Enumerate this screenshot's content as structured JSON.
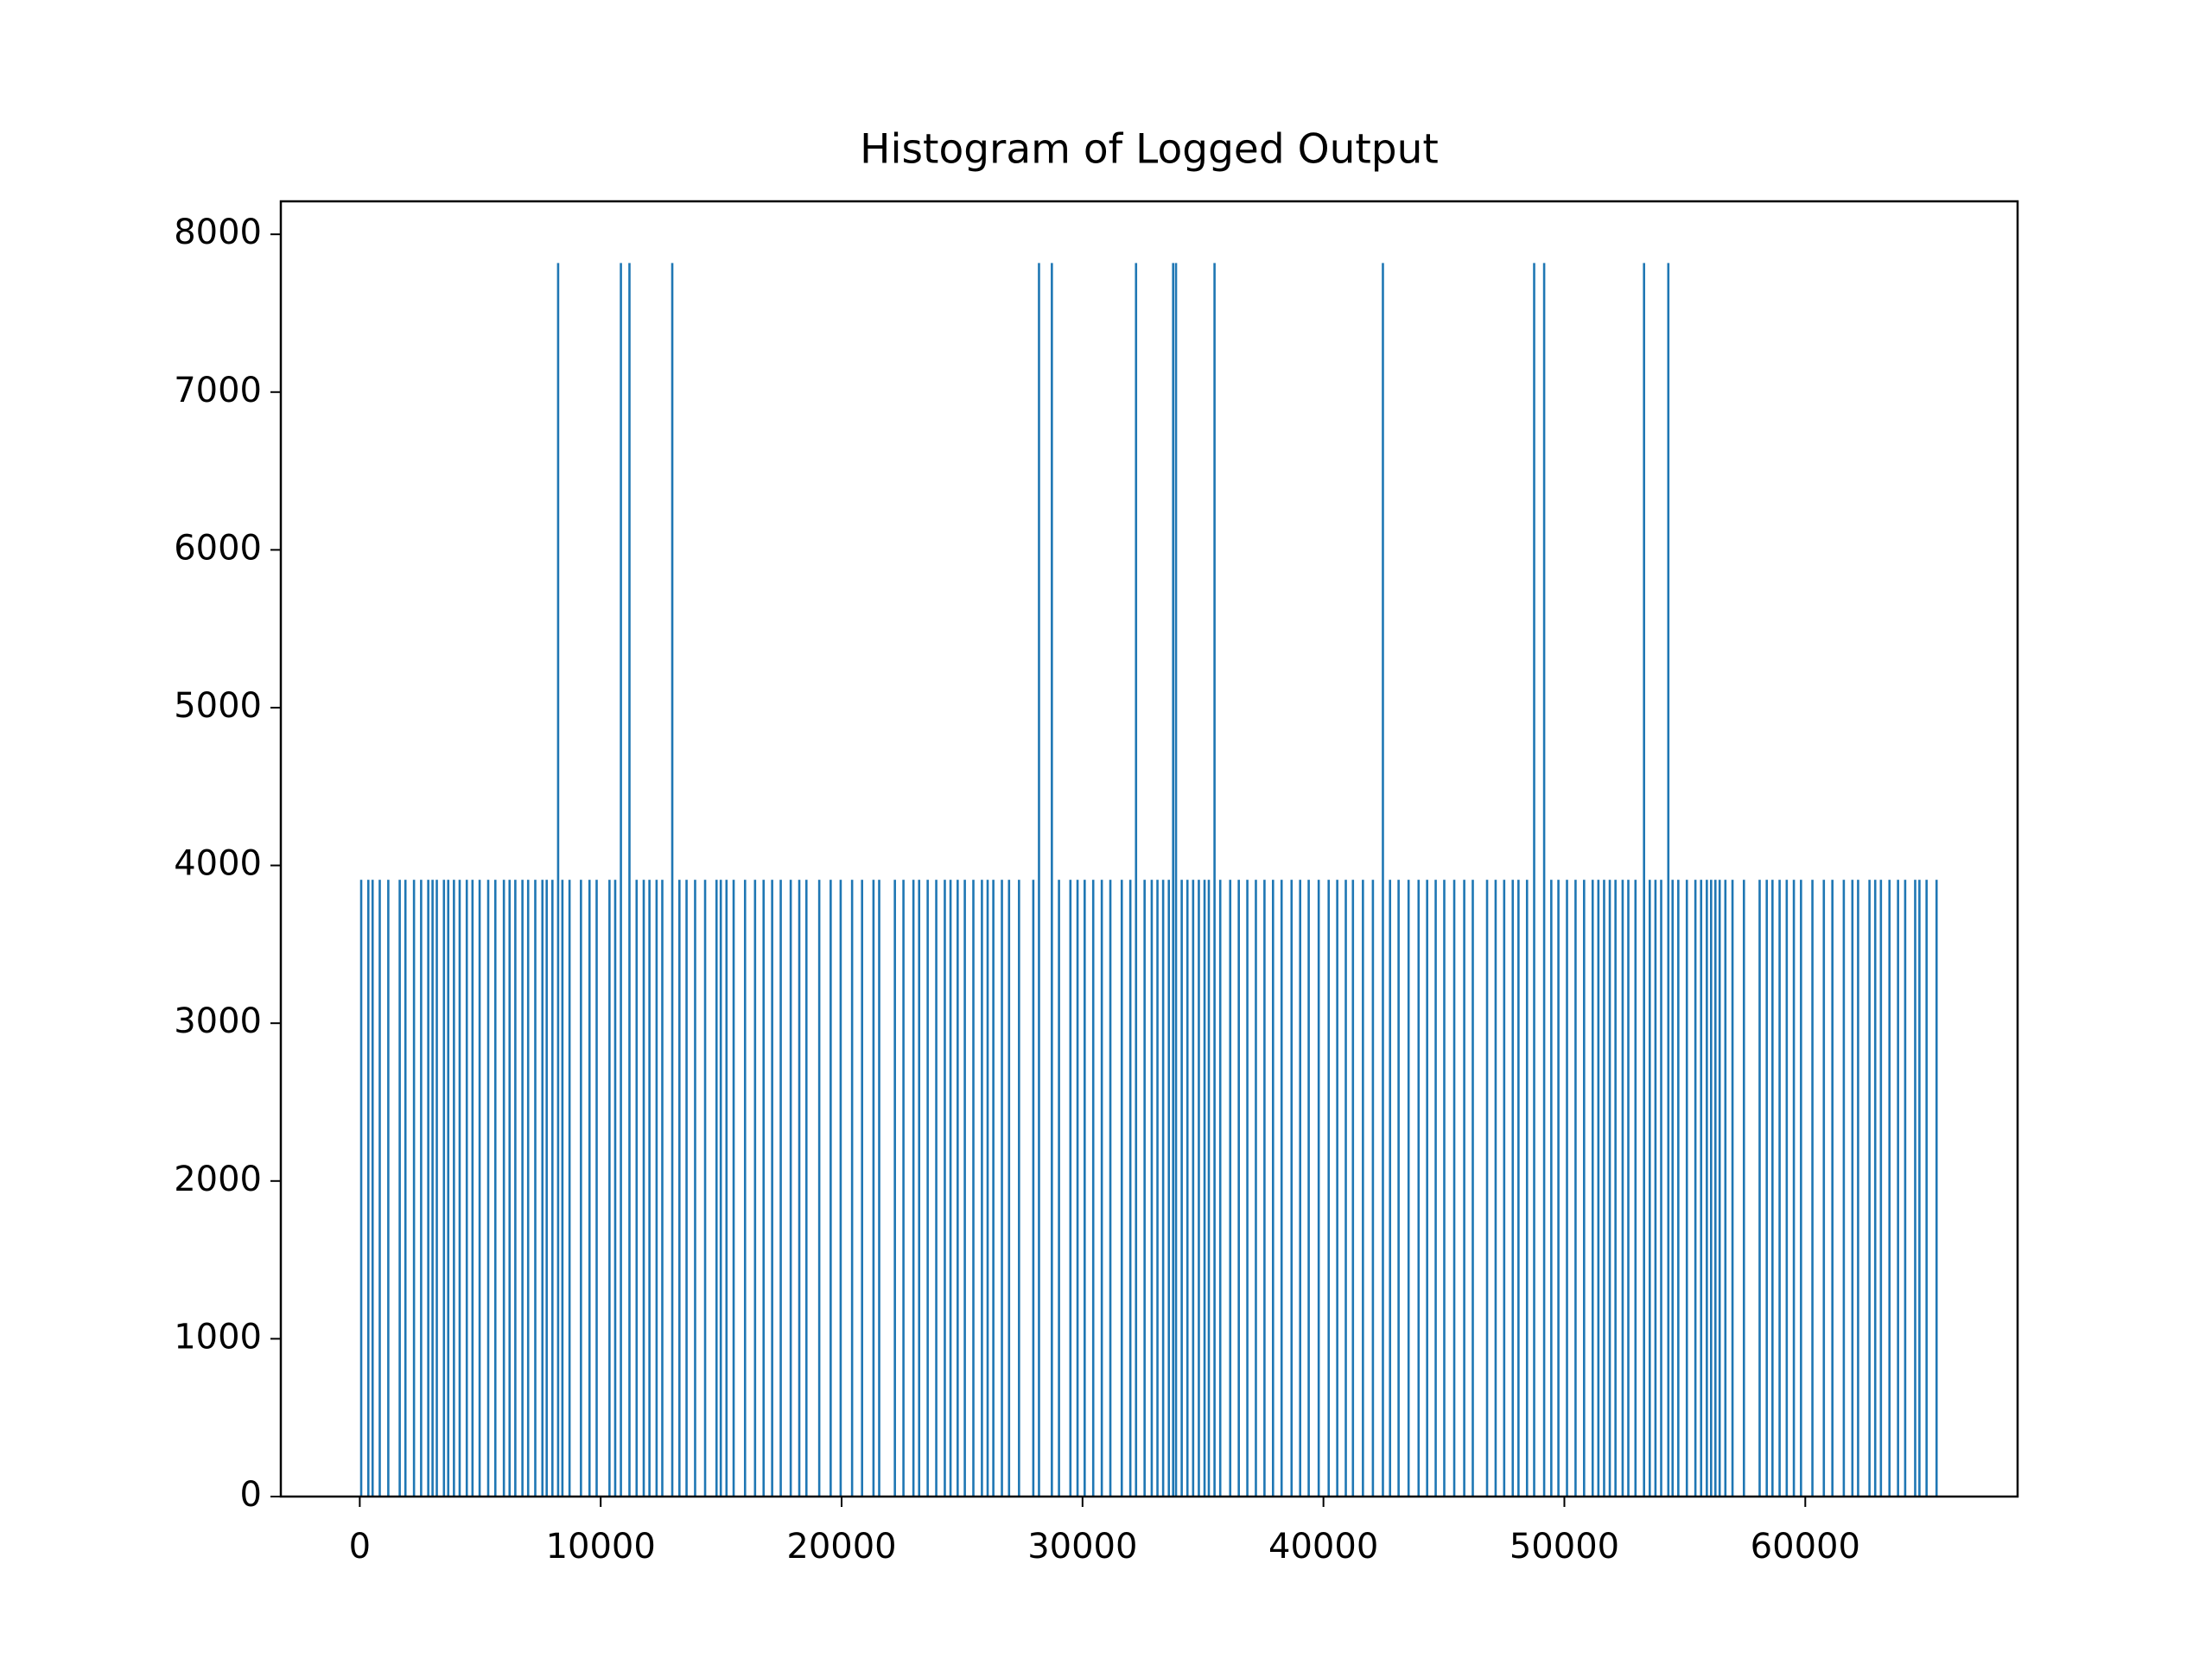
{
  "chart_data": {
    "type": "spike",
    "title": "Histogram of Logged Output",
    "color": "#1f77b4",
    "x": [
      59,
      355,
      533,
      829,
      1184,
      1658,
      1895,
      2251,
      2547,
      2843,
      3021,
      3198,
      3494,
      3672,
      3909,
      4146,
      4442,
      4679,
      4975,
      5331,
      5627,
      5982,
      6219,
      6456,
      6752,
      6989,
      7285,
      7581,
      7759,
      7996,
      8233,
      8411,
      8707,
      9181,
      9536,
      9832,
      10365,
      10602,
      10839,
      11194,
      11491,
      11787,
      12024,
      12320,
      12557,
      12971,
      13268,
      13564,
      13919,
      14334,
      14808,
      14985,
      15222,
      15518,
      15992,
      16407,
      16762,
      17117,
      17473,
      17888,
      18243,
      18539,
      19072,
      19546,
      19961,
      20435,
      20849,
      21323,
      21560,
      22211,
      22567,
      22981,
      23218,
      23573,
      23929,
      24284,
      24521,
      24817,
      25114,
      25469,
      25824,
      26061,
      26298,
      26654,
      26950,
      27364,
      27957,
      28193,
      28727,
      29023,
      29497,
      29793,
      30089,
      30444,
      30800,
      31155,
      31629,
      31984,
      32221,
      32576,
      32873,
      33110,
      33346,
      33583,
      33761,
      33880,
      34117,
      34354,
      34591,
      34828,
      35065,
      35242,
      35479,
      35716,
      36130,
      36486,
      36841,
      37196,
      37552,
      37907,
      38263,
      38677,
      39033,
      39388,
      39803,
      40217,
      40573,
      40928,
      41224,
      41639,
      42053,
      42468,
      42764,
      43119,
      43534,
      43949,
      44304,
      44659,
      45015,
      45429,
      45844,
      46199,
      46792,
      47147,
      47502,
      47858,
      48095,
      48450,
      48746,
      49161,
      49457,
      49753,
      50109,
      50464,
      50819,
      51175,
      51412,
      51649,
      51885,
      52122,
      52419,
      52655,
      52952,
      53307,
      53544,
      53781,
      54018,
      54315,
      54492,
      54729,
      55084,
      55439,
      55676,
      55913,
      56091,
      56269,
      56446,
      56683,
      56979,
      57453,
      58105,
      58401,
      58638,
      58934,
      59230,
      59526,
      59822,
      60296,
      60770,
      61125,
      61599,
      61955,
      62192,
      62665,
      62902,
      63139,
      63494,
      63850,
      64146,
      64561,
      64738,
      65034,
      65449
    ],
    "values": [
      3909,
      3909,
      3909,
      3909,
      3909,
      3909,
      3909,
      3909,
      3909,
      3909,
      3909,
      3909,
      3909,
      3909,
      3909,
      3909,
      3909,
      3909,
      3909,
      3909,
      3909,
      3909,
      3909,
      3909,
      3909,
      3909,
      3909,
      3909,
      3909,
      3909,
      7818,
      3909,
      3909,
      3909,
      3909,
      3909,
      3909,
      3909,
      7818,
      7818,
      3909,
      3909,
      3909,
      3909,
      3909,
      7818,
      3909,
      3909,
      3909,
      3909,
      3909,
      3909,
      3909,
      3909,
      3909,
      3909,
      3909,
      3909,
      3909,
      3909,
      3909,
      3909,
      3909,
      3909,
      3909,
      3909,
      3909,
      3909,
      3909,
      3909,
      3909,
      3909,
      3909,
      3909,
      3909,
      3909,
      3909,
      3909,
      3909,
      3909,
      3909,
      3909,
      3909,
      3909,
      3909,
      3909,
      3909,
      7818,
      7818,
      3909,
      3909,
      3909,
      3909,
      3909,
      3909,
      3909,
      3909,
      3909,
      7818,
      3909,
      3909,
      3909,
      3909,
      3909,
      7818,
      7818,
      3909,
      3909,
      3909,
      3909,
      3909,
      3909,
      7818,
      3909,
      3909,
      3909,
      3909,
      3909,
      3909,
      3909,
      3909,
      3909,
      3909,
      3909,
      3909,
      3909,
      3909,
      3909,
      3909,
      3909,
      3909,
      7818,
      3909,
      3909,
      3909,
      3909,
      3909,
      3909,
      3909,
      3909,
      3909,
      3909,
      3909,
      3909,
      3909,
      3909,
      3909,
      3909,
      7818,
      7818,
      3909,
      3909,
      3909,
      3909,
      3909,
      3909,
      3909,
      3909,
      3909,
      3909,
      3909,
      3909,
      3909,
      7818,
      3909,
      3909,
      3909,
      7818,
      3909,
      3909,
      3909,
      3909,
      3909,
      3909,
      3909,
      3909,
      3909,
      3909,
      3909,
      3909,
      3909,
      3909,
      3909,
      3909,
      3909,
      3909,
      3909,
      3909,
      3909,
      3909,
      3909,
      3909,
      3909,
      3909,
      3909,
      3909,
      3909,
      3909,
      3909,
      3909,
      3909,
      3909,
      3909
    ],
    "xlim": [
      -3277,
      68812
    ],
    "ylim": [
      0,
      8209
    ],
    "xticks": [
      0,
      10000,
      20000,
      30000,
      40000,
      50000,
      60000
    ],
    "yticks": [
      0,
      1000,
      2000,
      3000,
      4000,
      5000,
      6000,
      7000,
      8000
    ]
  }
}
